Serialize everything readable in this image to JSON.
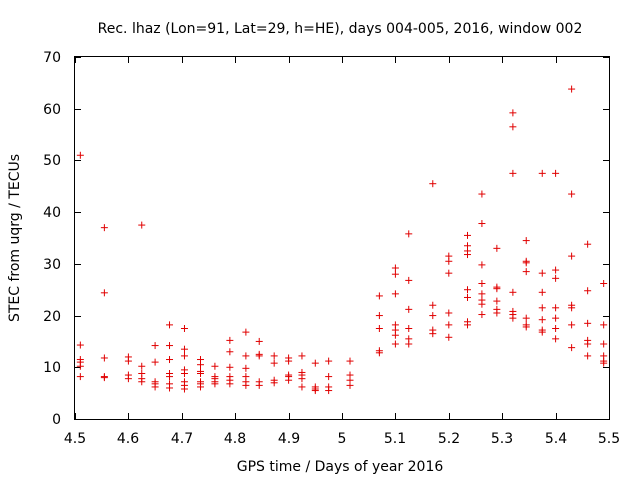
{
  "colors": {
    "marker": "#e00000",
    "axis": "#000000",
    "background": "#ffffff"
  },
  "chart_data": {
    "type": "scatter",
    "title": "Rec. lhaz (Lon=91, Lat=29, h=HE), days 004-005, 2016, window 002",
    "xlabel": "GPS time / Days of year 2016",
    "ylabel": "STEC from uqrg / TECUs",
    "xlim": [
      4.5,
      5.5
    ],
    "ylim": [
      0,
      70
    ],
    "xticks": [
      4.5,
      4.6,
      4.7,
      4.8,
      4.9,
      5.0,
      5.1,
      5.2,
      5.3,
      5.4,
      5.5
    ],
    "xtick_labels": [
      "4.5",
      "4.6",
      "4.7",
      "4.8",
      "4.9",
      "5",
      "5.1",
      "5.2",
      "5.3",
      "5.4",
      "5.5"
    ],
    "yticks": [
      0,
      10,
      20,
      30,
      40,
      50,
      60,
      70
    ],
    "ytick_labels": [
      "0",
      "10",
      "20",
      "30",
      "40",
      "50",
      "60",
      "70"
    ],
    "marker": "+",
    "grid": false,
    "series": [
      {
        "name": "STEC",
        "points": [
          [
            4.51,
            51.0
          ],
          [
            4.51,
            14.3
          ],
          [
            4.51,
            11.5
          ],
          [
            4.51,
            11.0
          ],
          [
            4.51,
            10.2
          ],
          [
            4.51,
            8.2
          ],
          [
            4.555,
            37.0
          ],
          [
            4.555,
            24.4
          ],
          [
            4.555,
            11.8
          ],
          [
            4.555,
            8.2
          ],
          [
            4.555,
            8.0
          ],
          [
            4.6,
            12.0
          ],
          [
            4.6,
            11.2
          ],
          [
            4.6,
            8.5
          ],
          [
            4.6,
            7.8
          ],
          [
            4.625,
            37.5
          ],
          [
            4.625,
            10.2
          ],
          [
            4.625,
            8.8
          ],
          [
            4.625,
            7.8
          ],
          [
            4.625,
            7.2
          ],
          [
            4.65,
            14.2
          ],
          [
            4.65,
            11.0
          ],
          [
            4.65,
            7.2
          ],
          [
            4.65,
            6.8
          ],
          [
            4.65,
            6.2
          ],
          [
            4.677,
            18.2
          ],
          [
            4.677,
            14.2
          ],
          [
            4.677,
            11.5
          ],
          [
            4.677,
            8.8
          ],
          [
            4.677,
            8.2
          ],
          [
            4.677,
            6.8
          ],
          [
            4.677,
            6.0
          ],
          [
            4.705,
            17.5
          ],
          [
            4.705,
            13.5
          ],
          [
            4.705,
            12.2
          ],
          [
            4.705,
            9.5
          ],
          [
            4.705,
            8.8
          ],
          [
            4.705,
            7.2
          ],
          [
            4.705,
            6.5
          ],
          [
            4.705,
            5.8
          ],
          [
            4.735,
            11.5
          ],
          [
            4.735,
            10.5
          ],
          [
            4.735,
            9.2
          ],
          [
            4.735,
            8.8
          ],
          [
            4.735,
            7.2
          ],
          [
            4.735,
            6.8
          ],
          [
            4.735,
            6.2
          ],
          [
            4.762,
            10.2
          ],
          [
            4.762,
            8.2
          ],
          [
            4.762,
            7.8
          ],
          [
            4.762,
            7.2
          ],
          [
            4.762,
            6.8
          ],
          [
            4.79,
            15.2
          ],
          [
            4.79,
            13.0
          ],
          [
            4.79,
            10.0
          ],
          [
            4.79,
            8.2
          ],
          [
            4.79,
            7.5
          ],
          [
            4.79,
            6.8
          ],
          [
            4.82,
            16.8
          ],
          [
            4.82,
            12.2
          ],
          [
            4.82,
            9.8
          ],
          [
            4.82,
            8.2
          ],
          [
            4.82,
            7.2
          ],
          [
            4.82,
            6.5
          ],
          [
            4.845,
            15.0
          ],
          [
            4.845,
            12.5
          ],
          [
            4.845,
            12.2
          ],
          [
            4.845,
            7.2
          ],
          [
            4.845,
            6.5
          ],
          [
            4.873,
            12.2
          ],
          [
            4.873,
            10.8
          ],
          [
            4.873,
            7.5
          ],
          [
            4.873,
            7.0
          ],
          [
            4.9,
            11.8
          ],
          [
            4.9,
            11.2
          ],
          [
            4.9,
            8.5
          ],
          [
            4.9,
            8.2
          ],
          [
            4.9,
            7.5
          ],
          [
            4.925,
            12.2
          ],
          [
            4.925,
            9.0
          ],
          [
            4.925,
            8.5
          ],
          [
            4.925,
            7.8
          ],
          [
            4.925,
            6.2
          ],
          [
            4.95,
            10.8
          ],
          [
            4.95,
            6.2
          ],
          [
            4.95,
            5.8
          ],
          [
            4.95,
            5.5
          ],
          [
            4.975,
            11.2
          ],
          [
            4.975,
            8.2
          ],
          [
            4.975,
            6.2
          ],
          [
            4.975,
            5.5
          ],
          [
            5.015,
            11.2
          ],
          [
            5.015,
            8.5
          ],
          [
            5.015,
            7.5
          ],
          [
            5.015,
            6.5
          ],
          [
            5.07,
            23.8
          ],
          [
            5.07,
            20.0
          ],
          [
            5.07,
            17.5
          ],
          [
            5.07,
            13.2
          ],
          [
            5.07,
            12.8
          ],
          [
            5.1,
            29.2
          ],
          [
            5.1,
            28.0
          ],
          [
            5.1,
            24.2
          ],
          [
            5.1,
            18.2
          ],
          [
            5.1,
            17.2
          ],
          [
            5.1,
            16.2
          ],
          [
            5.1,
            14.5
          ],
          [
            5.125,
            35.8
          ],
          [
            5.125,
            26.8
          ],
          [
            5.125,
            21.2
          ],
          [
            5.125,
            17.5
          ],
          [
            5.125,
            15.5
          ],
          [
            5.125,
            14.5
          ],
          [
            5.17,
            45.5
          ],
          [
            5.17,
            22.0
          ],
          [
            5.17,
            20.0
          ],
          [
            5.17,
            17.2
          ],
          [
            5.17,
            16.5
          ],
          [
            5.2,
            31.5
          ],
          [
            5.2,
            30.5
          ],
          [
            5.2,
            28.2
          ],
          [
            5.2,
            20.5
          ],
          [
            5.2,
            18.2
          ],
          [
            5.2,
            15.8
          ],
          [
            5.235,
            35.5
          ],
          [
            5.235,
            33.5
          ],
          [
            5.235,
            32.5
          ],
          [
            5.235,
            31.8
          ],
          [
            5.235,
            25.0
          ],
          [
            5.235,
            23.5
          ],
          [
            5.235,
            18.8
          ],
          [
            5.235,
            18.2
          ],
          [
            5.262,
            43.5
          ],
          [
            5.262,
            37.8
          ],
          [
            5.262,
            29.8
          ],
          [
            5.262,
            26.2
          ],
          [
            5.262,
            24.2
          ],
          [
            5.262,
            23.0
          ],
          [
            5.262,
            22.2
          ],
          [
            5.262,
            20.2
          ],
          [
            5.29,
            33.0
          ],
          [
            5.29,
            25.5
          ],
          [
            5.29,
            25.2
          ],
          [
            5.29,
            22.8
          ],
          [
            5.29,
            21.2
          ],
          [
            5.29,
            20.5
          ],
          [
            5.32,
            59.2
          ],
          [
            5.32,
            56.5
          ],
          [
            5.32,
            47.5
          ],
          [
            5.32,
            24.5
          ],
          [
            5.32,
            20.8
          ],
          [
            5.32,
            20.2
          ],
          [
            5.32,
            19.5
          ],
          [
            5.345,
            34.5
          ],
          [
            5.345,
            30.5
          ],
          [
            5.345,
            30.2
          ],
          [
            5.345,
            28.5
          ],
          [
            5.345,
            19.5
          ],
          [
            5.345,
            18.2
          ],
          [
            5.345,
            17.8
          ],
          [
            5.375,
            47.5
          ],
          [
            5.375,
            28.2
          ],
          [
            5.375,
            24.5
          ],
          [
            5.375,
            21.5
          ],
          [
            5.375,
            19.2
          ],
          [
            5.375,
            17.2
          ],
          [
            5.375,
            16.8
          ],
          [
            5.4,
            47.5
          ],
          [
            5.4,
            28.8
          ],
          [
            5.4,
            27.2
          ],
          [
            5.4,
            21.5
          ],
          [
            5.4,
            19.5
          ],
          [
            5.4,
            17.5
          ],
          [
            5.4,
            15.5
          ],
          [
            5.43,
            63.8
          ],
          [
            5.43,
            43.5
          ],
          [
            5.43,
            31.5
          ],
          [
            5.43,
            22.0
          ],
          [
            5.43,
            21.5
          ],
          [
            5.43,
            18.2
          ],
          [
            5.43,
            13.8
          ],
          [
            5.46,
            33.8
          ],
          [
            5.46,
            24.8
          ],
          [
            5.46,
            18.5
          ],
          [
            5.46,
            15.2
          ],
          [
            5.46,
            14.5
          ],
          [
            5.46,
            12.2
          ],
          [
            5.49,
            26.2
          ],
          [
            5.49,
            18.2
          ],
          [
            5.49,
            14.5
          ],
          [
            5.49,
            12.2
          ],
          [
            5.49,
            11.2
          ],
          [
            5.49,
            10.8
          ]
        ]
      }
    ]
  }
}
